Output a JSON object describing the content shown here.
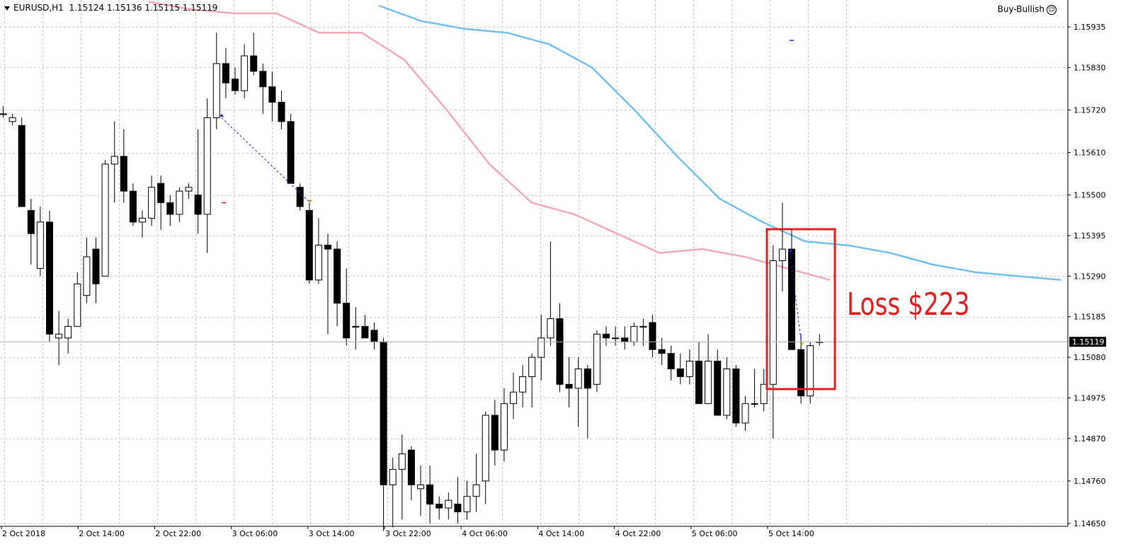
{
  "header": {
    "symbol": "EURUSD,H1",
    "ohlc": "1.15124 1.15136 1.15115 1.15119"
  },
  "expert": {
    "label": "Buy-Bullish",
    "icon": "smiley-icon"
  },
  "annotation": {
    "text": "Loss $223",
    "color": "#e02020"
  },
  "current_price_label": "1.15119",
  "colors": {
    "grid": "#c8c8c8",
    "bull_body": "#ffffff",
    "bear_body": "#000000",
    "ma_fast": "#f4a9b5",
    "ma_slow": "#6ec1f0",
    "trade_line": "#2222dd"
  },
  "chart_data": {
    "type": "candlestick",
    "y_ticks": [
      "1.15935",
      "1.15830",
      "1.15720",
      "1.15610",
      "1.15500",
      "1.15395",
      "1.15290",
      "1.15185",
      "1.15080",
      "1.14975",
      "1.14870",
      "1.14760",
      "1.14650"
    ],
    "x_ticks": [
      "2 Oct 2018",
      "2 Oct 14:00",
      "2 Oct 22:00",
      "3 Oct 06:00",
      "3 Oct 14:00",
      "3 Oct 22:00",
      "4 Oct 06:00",
      "4 Oct 14:00",
      "4 Oct 22:00",
      "5 Oct 06:00",
      "5 Oct 14:00"
    ],
    "ylim": [
      1.146,
      1.16
    ],
    "candles": [
      {
        "o": 1.1571,
        "h": 1.1573,
        "l": 1.157,
        "c": 1.1571
      },
      {
        "o": 1.1569,
        "h": 1.1571,
        "l": 1.1568,
        "c": 1.157
      },
      {
        "o": 1.1568,
        "h": 1.157,
        "l": 1.1547,
        "c": 1.1547
      },
      {
        "o": 1.1546,
        "h": 1.1549,
        "l": 1.1532,
        "c": 1.154
      },
      {
        "o": 1.1531,
        "h": 1.1547,
        "l": 1.1529,
        "c": 1.1543
      },
      {
        "o": 1.1543,
        "h": 1.1546,
        "l": 1.1512,
        "c": 1.1514
      },
      {
        "o": 1.1513,
        "h": 1.152,
        "l": 1.1506,
        "c": 1.1514
      },
      {
        "o": 1.1513,
        "h": 1.1518,
        "l": 1.1509,
        "c": 1.1516
      },
      {
        "o": 1.1516,
        "h": 1.153,
        "l": 1.1516,
        "c": 1.1527
      },
      {
        "o": 1.1524,
        "h": 1.1539,
        "l": 1.1522,
        "c": 1.1534
      },
      {
        "o": 1.1536,
        "h": 1.1539,
        "l": 1.1522,
        "c": 1.1527
      },
      {
        "o": 1.1529,
        "h": 1.1559,
        "l": 1.1529,
        "c": 1.1558
      },
      {
        "o": 1.1558,
        "h": 1.1569,
        "l": 1.1548,
        "c": 1.156
      },
      {
        "o": 1.156,
        "h": 1.1567,
        "l": 1.1548,
        "c": 1.1551
      },
      {
        "o": 1.1551,
        "h": 1.1553,
        "l": 1.1542,
        "c": 1.1543
      },
      {
        "o": 1.1543,
        "h": 1.1546,
        "l": 1.1539,
        "c": 1.1544
      },
      {
        "o": 1.1544,
        "h": 1.1555,
        "l": 1.1542,
        "c": 1.1552
      },
      {
        "o": 1.1553,
        "h": 1.1555,
        "l": 1.1541,
        "c": 1.1548
      },
      {
        "o": 1.1548,
        "h": 1.155,
        "l": 1.1542,
        "c": 1.1545
      },
      {
        "o": 1.1545,
        "h": 1.1552,
        "l": 1.1543,
        "c": 1.1551
      },
      {
        "o": 1.1551,
        "h": 1.1553,
        "l": 1.1549,
        "c": 1.1552
      },
      {
        "o": 1.155,
        "h": 1.1567,
        "l": 1.154,
        "c": 1.1545
      },
      {
        "o": 1.1545,
        "h": 1.1575,
        "l": 1.1535,
        "c": 1.157
      },
      {
        "o": 1.157,
        "h": 1.1592,
        "l": 1.1567,
        "c": 1.1584
      },
      {
        "o": 1.1584,
        "h": 1.1588,
        "l": 1.1575,
        "c": 1.1579
      },
      {
        "o": 1.158,
        "h": 1.1583,
        "l": 1.1576,
        "c": 1.1577
      },
      {
        "o": 1.1577,
        "h": 1.1589,
        "l": 1.1575,
        "c": 1.1586
      },
      {
        "o": 1.1586,
        "h": 1.1592,
        "l": 1.1581,
        "c": 1.1582
      },
      {
        "o": 1.1582,
        "h": 1.1584,
        "l": 1.1571,
        "c": 1.1578
      },
      {
        "o": 1.1578,
        "h": 1.1582,
        "l": 1.1569,
        "c": 1.1574
      },
      {
        "o": 1.1574,
        "h": 1.1577,
        "l": 1.1567,
        "c": 1.1569
      },
      {
        "o": 1.1569,
        "h": 1.1571,
        "l": 1.1553,
        "c": 1.1553
      },
      {
        "o": 1.1552,
        "h": 1.1553,
        "l": 1.1546,
        "c": 1.1547
      },
      {
        "o": 1.1546,
        "h": 1.1548,
        "l": 1.1527,
        "c": 1.1528
      },
      {
        "o": 1.1528,
        "h": 1.1544,
        "l": 1.1527,
        "c": 1.1537
      },
      {
        "o": 1.1537,
        "h": 1.154,
        "l": 1.1514,
        "c": 1.1536
      },
      {
        "o": 1.1536,
        "h": 1.1538,
        "l": 1.1516,
        "c": 1.1522
      },
      {
        "o": 1.1522,
        "h": 1.1531,
        "l": 1.1511,
        "c": 1.1513
      },
      {
        "o": 1.1516,
        "h": 1.1521,
        "l": 1.151,
        "c": 1.1516
      },
      {
        "o": 1.1516,
        "h": 1.1519,
        "l": 1.1513,
        "c": 1.1513
      },
      {
        "o": 1.1515,
        "h": 1.1517,
        "l": 1.151,
        "c": 1.1512
      },
      {
        "o": 1.1512,
        "h": 1.1513,
        "l": 1.1463,
        "c": 1.1475
      },
      {
        "o": 1.1475,
        "h": 1.1482,
        "l": 1.1464,
        "c": 1.1479
      },
      {
        "o": 1.1479,
        "h": 1.1488,
        "l": 1.1466,
        "c": 1.1483
      },
      {
        "o": 1.1484,
        "h": 1.1485,
        "l": 1.1471,
        "c": 1.1475
      },
      {
        "o": 1.1474,
        "h": 1.148,
        "l": 1.1467,
        "c": 1.1475
      },
      {
        "o": 1.1475,
        "h": 1.148,
        "l": 1.1465,
        "c": 1.147
      },
      {
        "o": 1.147,
        "h": 1.1472,
        "l": 1.1466,
        "c": 1.1469
      },
      {
        "o": 1.1469,
        "h": 1.1473,
        "l": 1.1466,
        "c": 1.1471
      },
      {
        "o": 1.147,
        "h": 1.1477,
        "l": 1.1465,
        "c": 1.1468
      },
      {
        "o": 1.1468,
        "h": 1.1476,
        "l": 1.1466,
        "c": 1.1472
      },
      {
        "o": 1.1472,
        "h": 1.1483,
        "l": 1.1468,
        "c": 1.1475
      },
      {
        "o": 1.1476,
        "h": 1.1494,
        "l": 1.147,
        "c": 1.1493
      },
      {
        "o": 1.1493,
        "h": 1.1497,
        "l": 1.148,
        "c": 1.1484
      },
      {
        "o": 1.1484,
        "h": 1.15,
        "l": 1.1481,
        "c": 1.1496
      },
      {
        "o": 1.1496,
        "h": 1.1504,
        "l": 1.1492,
        "c": 1.1499
      },
      {
        "o": 1.1499,
        "h": 1.1506,
        "l": 1.1495,
        "c": 1.1503
      },
      {
        "o": 1.1503,
        "h": 1.1509,
        "l": 1.1495,
        "c": 1.1508
      },
      {
        "o": 1.1508,
        "h": 1.1519,
        "l": 1.1502,
        "c": 1.1513
      },
      {
        "o": 1.1513,
        "h": 1.1538,
        "l": 1.1511,
        "c": 1.1518
      },
      {
        "o": 1.1518,
        "h": 1.1522,
        "l": 1.1499,
        "c": 1.1501
      },
      {
        "o": 1.1501,
        "h": 1.1508,
        "l": 1.1495,
        "c": 1.15
      },
      {
        "o": 1.15,
        "h": 1.1508,
        "l": 1.149,
        "c": 1.1505
      },
      {
        "o": 1.1505,
        "h": 1.1506,
        "l": 1.1487,
        "c": 1.15
      },
      {
        "o": 1.1501,
        "h": 1.1515,
        "l": 1.1499,
        "c": 1.1514
      },
      {
        "o": 1.1514,
        "h": 1.1516,
        "l": 1.1511,
        "c": 1.1513
      },
      {
        "o": 1.1513,
        "h": 1.1516,
        "l": 1.1511,
        "c": 1.1513
      },
      {
        "o": 1.1513,
        "h": 1.1516,
        "l": 1.151,
        "c": 1.1512
      },
      {
        "o": 1.1512,
        "h": 1.1517,
        "l": 1.1511,
        "c": 1.1516
      },
      {
        "o": 1.1516,
        "h": 1.1518,
        "l": 1.1511,
        "c": 1.1516
      },
      {
        "o": 1.1517,
        "h": 1.1519,
        "l": 1.1508,
        "c": 1.151
      },
      {
        "o": 1.151,
        "h": 1.1513,
        "l": 1.1506,
        "c": 1.1509
      },
      {
        "o": 1.1509,
        "h": 1.1511,
        "l": 1.1502,
        "c": 1.1505
      },
      {
        "o": 1.1505,
        "h": 1.1509,
        "l": 1.1501,
        "c": 1.1503
      },
      {
        "o": 1.1503,
        "h": 1.151,
        "l": 1.1501,
        "c": 1.1507
      },
      {
        "o": 1.1507,
        "h": 1.1512,
        "l": 1.1496,
        "c": 1.1496
      },
      {
        "o": 1.1496,
        "h": 1.1514,
        "l": 1.1496,
        "c": 1.1507
      },
      {
        "o": 1.1507,
        "h": 1.151,
        "l": 1.1493,
        "c": 1.1493
      },
      {
        "o": 1.1493,
        "h": 1.1508,
        "l": 1.1492,
        "c": 1.1505
      },
      {
        "o": 1.1505,
        "h": 1.1506,
        "l": 1.149,
        "c": 1.1491
      },
      {
        "o": 1.1491,
        "h": 1.1498,
        "l": 1.1489,
        "c": 1.1496
      },
      {
        "o": 1.1496,
        "h": 1.1505,
        "l": 1.1495,
        "c": 1.1496
      },
      {
        "o": 1.1496,
        "h": 1.1505,
        "l": 1.1494,
        "c": 1.1501
      },
      {
        "o": 1.1501,
        "h": 1.1537,
        "l": 1.1487,
        "c": 1.1533
      },
      {
        "o": 1.1533,
        "h": 1.1548,
        "l": 1.1525,
        "c": 1.1536
      },
      {
        "o": 1.1536,
        "h": 1.1541,
        "l": 1.151,
        "c": 1.151
      },
      {
        "o": 1.151,
        "h": 1.1514,
        "l": 1.1496,
        "c": 1.1498
      },
      {
        "o": 1.1498,
        "h": 1.1512,
        "l": 1.1496,
        "c": 1.1511
      },
      {
        "o": 1.1512,
        "h": 1.1514,
        "l": 1.1511,
        "c": 1.1512
      }
    ],
    "ma_fast": [
      1.16,
      1.1598,
      1.1597,
      1.1597,
      1.1592,
      1.1592,
      1.1585,
      1.1572,
      1.1558,
      1.1548,
      1.1545,
      1.154,
      1.1535,
      1.1536,
      1.1534,
      1.1531,
      1.1528
    ],
    "ma_slow": [
      1.1599,
      1.1595,
      1.1593,
      1.1592,
      1.1589,
      1.1583,
      1.1572,
      1.156,
      1.1549,
      1.1543,
      1.1538,
      1.1537,
      1.1535,
      1.1532,
      1.153,
      1.1529,
      1.1528
    ],
    "grid": true
  }
}
